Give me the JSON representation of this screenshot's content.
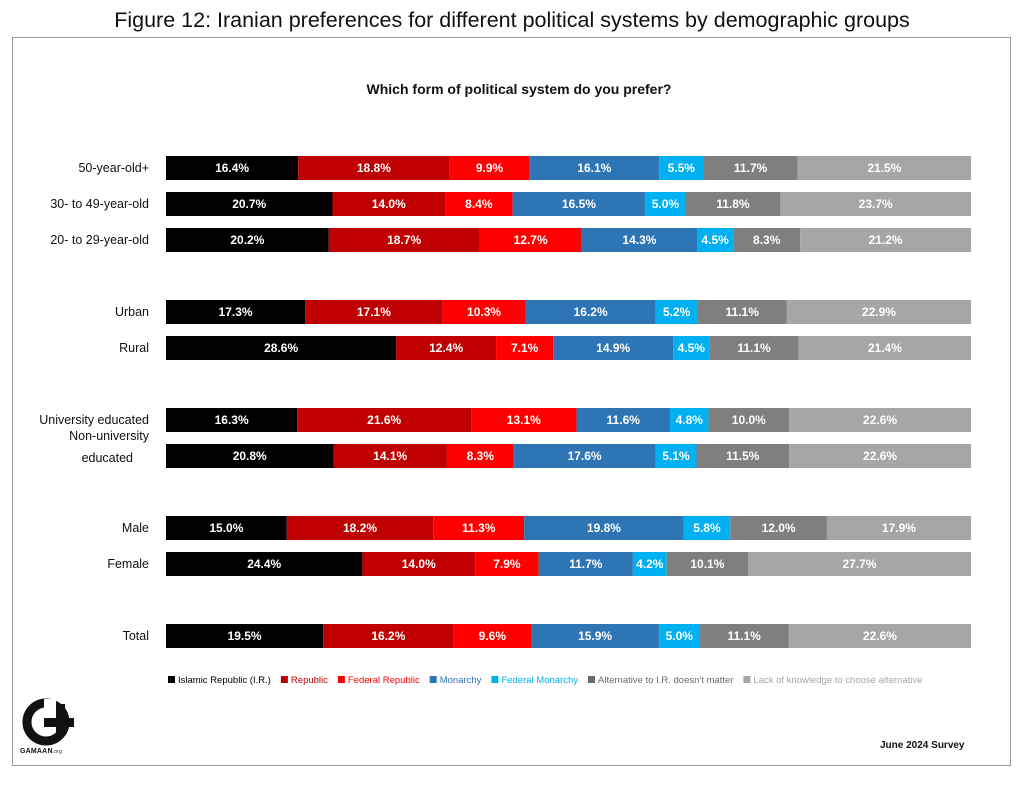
{
  "figure_title": "Figure 12: Iranian preferences for different political systems by demographic groups",
  "footer": {
    "logo_text": "GAMAAN",
    "logo_suffix": ".org",
    "survey": "June 2024 Survey"
  },
  "chart_data": {
    "type": "bar",
    "orientation": "horizontal",
    "stacked": true,
    "percent_stacked": true,
    "title": "Which form of political system do you prefer?",
    "legend_position": "bottom",
    "categories": [
      "50-year-old+",
      "30- to 49-year-old",
      "20- to 29-year-old",
      "Urban",
      "Rural",
      "University educated",
      "Non-university educated",
      "Male",
      "Female",
      "Total"
    ],
    "groups": [
      [
        0,
        1,
        2
      ],
      [
        3,
        4
      ],
      [
        5,
        6
      ],
      [
        7,
        8
      ],
      [
        9
      ]
    ],
    "series": [
      {
        "name": "Islamic Republic (I.R.)",
        "color": "#000000",
        "legend_color": "#000000",
        "values": [
          16.4,
          20.7,
          20.2,
          17.3,
          28.6,
          16.3,
          20.8,
          15.0,
          24.4,
          19.5
        ]
      },
      {
        "name": "Republic",
        "color": "#c00000",
        "legend_color": "#c00000",
        "values": [
          18.8,
          14.0,
          18.7,
          17.1,
          12.4,
          21.6,
          14.1,
          18.2,
          14.0,
          16.2
        ]
      },
      {
        "name": "Federal Republic",
        "color": "#ff0000",
        "legend_color": "#ff0000",
        "values": [
          9.9,
          8.4,
          12.7,
          10.3,
          7.1,
          13.1,
          8.3,
          11.3,
          7.9,
          9.6
        ]
      },
      {
        "name": "Monarchy",
        "color": "#2e75b6",
        "legend_color": "#2e75b6",
        "values": [
          16.1,
          16.5,
          14.3,
          16.2,
          14.9,
          11.6,
          17.6,
          19.8,
          11.7,
          15.9
        ]
      },
      {
        "name": "Federal Monarchy",
        "color": "#00b0f0",
        "legend_color": "#00b0f0",
        "values": [
          5.5,
          5.0,
          4.5,
          5.2,
          4.5,
          4.8,
          5.1,
          5.8,
          4.2,
          5.0
        ]
      },
      {
        "name": "Alternative to I.R. doesn't matter",
        "color": "#7f7f7f",
        "legend_color": "#6a6a6a",
        "values": [
          11.7,
          11.8,
          8.3,
          11.1,
          11.1,
          10.0,
          11.5,
          12.0,
          10.1,
          11.1
        ]
      },
      {
        "name": "Lack of knowledge to choose alternative",
        "color": "#a6a6a6",
        "legend_color": "#a6a6a6",
        "values": [
          21.5,
          23.7,
          21.2,
          22.9,
          21.4,
          22.6,
          22.6,
          17.9,
          27.7,
          22.6
        ]
      }
    ]
  }
}
